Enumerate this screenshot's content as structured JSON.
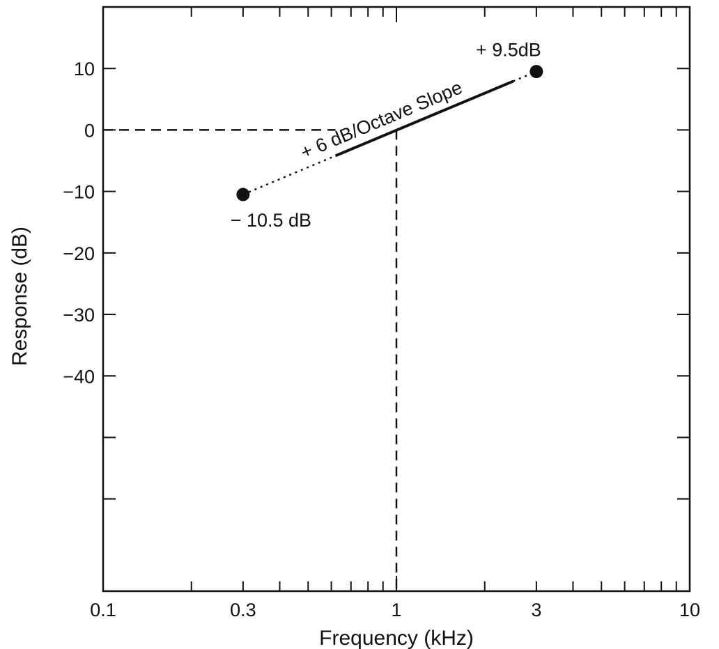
{
  "chart_data": {
    "type": "line",
    "title": "",
    "xlabel": "Frequency (kHz)",
    "ylabel": "Response (dB)",
    "x_scale": "log",
    "xlim": [
      0.1,
      10
    ],
    "ylim": [
      -75,
      20
    ],
    "grid": false,
    "x_tick_labels": [
      {
        "value": 0.1,
        "label": "0.1"
      },
      {
        "value": 0.3,
        "label": "0.3"
      },
      {
        "value": 1,
        "label": "1"
      },
      {
        "value": 3,
        "label": "3"
      },
      {
        "value": 10,
        "label": "10"
      }
    ],
    "y_tick_labels": [
      {
        "value": 10,
        "label": "10"
      },
      {
        "value": 0,
        "label": "0"
      },
      {
        "value": -10,
        "label": "-10"
      },
      {
        "value": -20,
        "label": "-20"
      },
      {
        "value": -30,
        "label": "-30"
      },
      {
        "value": -40,
        "label": "-40"
      }
    ],
    "y_unlabeled_ticks": [
      -50,
      -60
    ],
    "points": [
      {
        "x": 0.3,
        "y": -10.5,
        "label": "− 10.5 dB"
      },
      {
        "x": 3,
        "y": 9.5,
        "label": "+ 9.5dB"
      }
    ],
    "slope_line": {
      "x": [
        0.3,
        3
      ],
      "y": [
        -10.5,
        9.5
      ],
      "solid_range_x": [
        0.62,
        2.5
      ],
      "label": "+ 6 dB/Octave Slope"
    },
    "reference_lines": [
      {
        "orientation": "horizontal",
        "y": 0,
        "x_from": 0.1,
        "x_to": 0.62
      },
      {
        "orientation": "vertical",
        "x": 1,
        "y_from": 0,
        "y_to": -75
      }
    ]
  }
}
